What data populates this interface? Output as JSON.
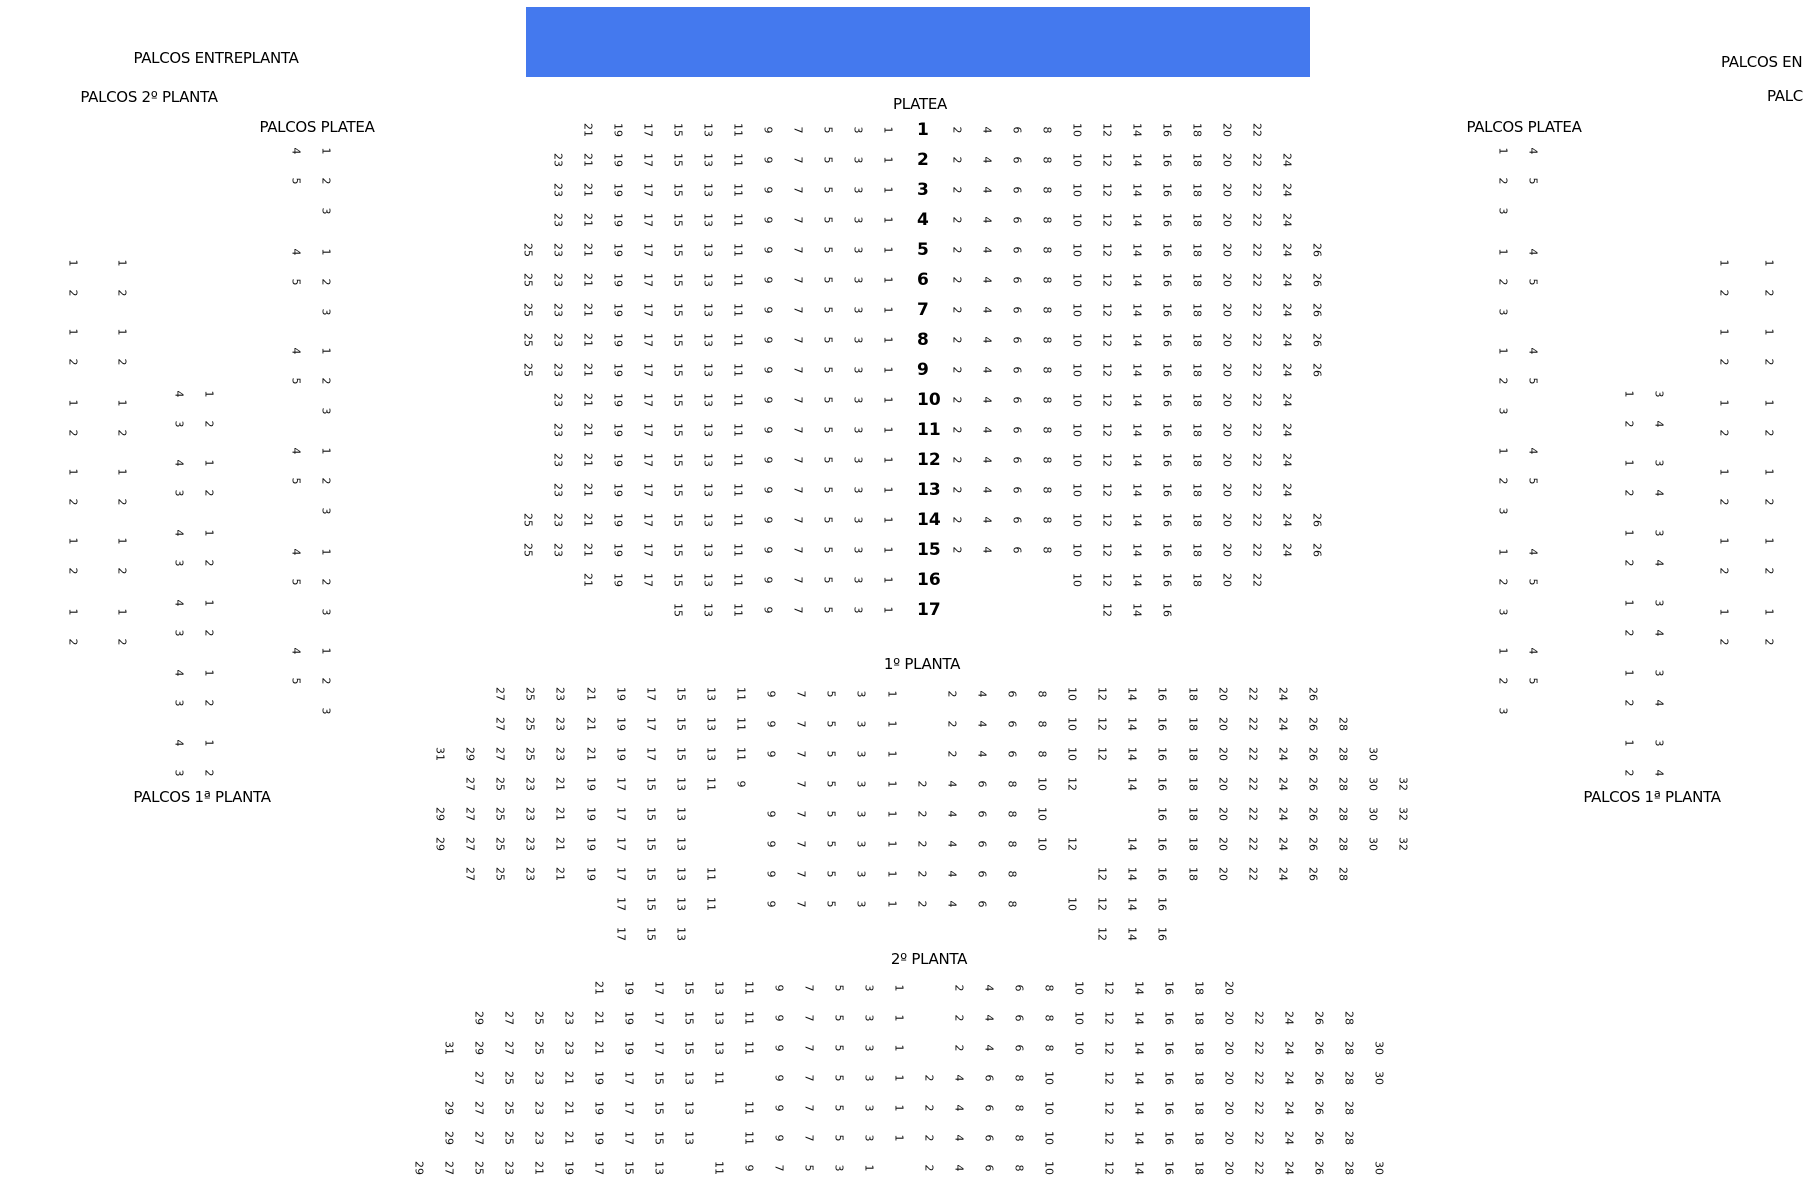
{
  "stage": {
    "color": "#4479ee"
  },
  "sections": {
    "palcos_entreplanta_left": "PALCOS ENTREPLANTA",
    "palcos_2_planta_left": "PALCOS 2º PLANTA",
    "palcos_platea_left": "PALCOS PLATEA",
    "palcos_platea_right": "PALCOS PLATEA",
    "palcos_entreplanta_right": "PALCOS EN",
    "palcos_2_planta_right": "PALC",
    "palcos_1_planta_left": "PALCOS 1ª PLANTA",
    "palcos_1_planta_right": "PALCOS 1ª PLANTA",
    "platea": "PLATEA",
    "planta_1": "1º PLANTA",
    "planta_2": "2º PLANTA"
  },
  "platea_rows": [
    {
      "label": "1",
      "left_max": 21,
      "right": [
        2,
        22
      ]
    },
    {
      "label": "2",
      "left_max": 23,
      "right": [
        2,
        24
      ]
    },
    {
      "label": "3",
      "left_max": 23,
      "right": [
        2,
        24
      ]
    },
    {
      "label": "4",
      "left_max": 23,
      "right": [
        2,
        24
      ]
    },
    {
      "label": "5",
      "left_max": 25,
      "right": [
        2,
        26
      ]
    },
    {
      "label": "6",
      "left_max": 25,
      "right": [
        2,
        26
      ]
    },
    {
      "label": "7",
      "left_max": 25,
      "right": [
        2,
        26
      ]
    },
    {
      "label": "8",
      "left_max": 25,
      "right": [
        2,
        26
      ]
    },
    {
      "label": "9",
      "left_max": 25,
      "right": [
        2,
        26
      ]
    },
    {
      "label": "10",
      "left_max": 23,
      "right": [
        2,
        24
      ]
    },
    {
      "label": "11",
      "left_max": 23,
      "right": [
        2,
        24
      ]
    },
    {
      "label": "12",
      "left_max": 23,
      "right": [
        2,
        24
      ]
    },
    {
      "label": "13",
      "left_max": 23,
      "right": [
        2,
        24
      ]
    },
    {
      "label": "14",
      "left_max": 25,
      "right": [
        2,
        26
      ]
    },
    {
      "label": "15",
      "left_max": 25,
      "right": [
        2,
        26
      ]
    },
    {
      "label": "16",
      "left_max": 21,
      "right": [
        10,
        22
      ]
    },
    {
      "label": "17",
      "left_max": 15,
      "right": [
        12,
        16
      ]
    }
  ],
  "planta_1_rows": [
    [
      null,
      null,
      27,
      25,
      23,
      21,
      19,
      17,
      15,
      13,
      11,
      9,
      7,
      5,
      3,
      1,
      null,
      2,
      4,
      6,
      8,
      10,
      12,
      14,
      16,
      18,
      20,
      22,
      24,
      26
    ],
    [
      null,
      null,
      27,
      25,
      23,
      21,
      19,
      17,
      15,
      13,
      11,
      9,
      7,
      5,
      3,
      1,
      null,
      2,
      4,
      6,
      8,
      10,
      12,
      14,
      16,
      18,
      20,
      22,
      24,
      26,
      28
    ],
    [
      31,
      29,
      27,
      25,
      23,
      21,
      19,
      17,
      15,
      13,
      11,
      9,
      7,
      5,
      3,
      1,
      null,
      2,
      4,
      6,
      8,
      10,
      12,
      14,
      16,
      18,
      20,
      22,
      24,
      26,
      28,
      30
    ],
    [
      null,
      27,
      25,
      23,
      21,
      19,
      17,
      15,
      13,
      11,
      9,
      null,
      7,
      5,
      3,
      1,
      2,
      4,
      6,
      8,
      10,
      12,
      null,
      14,
      16,
      18,
      20,
      22,
      24,
      26,
      28,
      30,
      32
    ],
    [
      29,
      27,
      25,
      23,
      21,
      19,
      17,
      15,
      13,
      null,
      null,
      9,
      7,
      5,
      3,
      1,
      2,
      4,
      6,
      8,
      10,
      null,
      null,
      null,
      16,
      18,
      20,
      22,
      24,
      26,
      28,
      30,
      32
    ],
    [
      29,
      27,
      25,
      23,
      21,
      19,
      17,
      15,
      13,
      null,
      null,
      9,
      7,
      5,
      3,
      1,
      2,
      4,
      6,
      8,
      10,
      12,
      null,
      14,
      16,
      18,
      20,
      22,
      24,
      26,
      28,
      30,
      32
    ],
    [
      null,
      27,
      25,
      23,
      21,
      19,
      17,
      15,
      13,
      11,
      null,
      9,
      7,
      5,
      3,
      1,
      2,
      4,
      6,
      8,
      null,
      null,
      12,
      14,
      16,
      18,
      20,
      22,
      24,
      26,
      28
    ],
    [
      null,
      null,
      null,
      null,
      null,
      null,
      17,
      15,
      13,
      11,
      null,
      9,
      7,
      5,
      3,
      1,
      2,
      4,
      6,
      8,
      null,
      10,
      12,
      14,
      16
    ],
    [
      null,
      null,
      null,
      null,
      null,
      null,
      17,
      15,
      13,
      null,
      null,
      null,
      null,
      null,
      null,
      null,
      null,
      null,
      null,
      null,
      null,
      null,
      12,
      14,
      16
    ]
  ],
  "planta_2_rows": [
    [
      null,
      null,
      null,
      null,
      null,
      null,
      21,
      19,
      17,
      15,
      13,
      11,
      9,
      7,
      5,
      3,
      1,
      null,
      2,
      4,
      6,
      8,
      10,
      12,
      14,
      16,
      18,
      20
    ],
    [
      null,
      null,
      29,
      27,
      25,
      23,
      21,
      19,
      17,
      15,
      13,
      11,
      9,
      7,
      5,
      3,
      1,
      null,
      2,
      4,
      6,
      8,
      10,
      12,
      14,
      16,
      18,
      20,
      22,
      24,
      26,
      28
    ],
    [
      null,
      31,
      29,
      27,
      25,
      23,
      21,
      19,
      17,
      15,
      13,
      11,
      9,
      7,
      5,
      3,
      1,
      null,
      2,
      4,
      6,
      8,
      10,
      12,
      14,
      16,
      18,
      20,
      22,
      24,
      26,
      28,
      30
    ],
    [
      null,
      null,
      27,
      25,
      23,
      21,
      19,
      17,
      15,
      13,
      11,
      null,
      9,
      7,
      5,
      3,
      1,
      2,
      4,
      6,
      8,
      10,
      null,
      12,
      14,
      16,
      18,
      20,
      22,
      24,
      26,
      28,
      30
    ],
    [
      null,
      29,
      27,
      25,
      23,
      21,
      19,
      17,
      15,
      13,
      null,
      11,
      9,
      7,
      5,
      3,
      1,
      2,
      4,
      6,
      8,
      10,
      null,
      12,
      14,
      16,
      18,
      20,
      22,
      24,
      26,
      28
    ],
    [
      null,
      29,
      27,
      25,
      23,
      21,
      19,
      17,
      15,
      13,
      null,
      11,
      9,
      7,
      5,
      3,
      1,
      2,
      4,
      6,
      8,
      10,
      null,
      12,
      14,
      16,
      18,
      20,
      22,
      24,
      26,
      28
    ],
    [
      29,
      27,
      25,
      23,
      21,
      19,
      17,
      15,
      13,
      null,
      11,
      9,
      7,
      5,
      3,
      1,
      null,
      2,
      4,
      6,
      8,
      10,
      null,
      12,
      14,
      16,
      18,
      20,
      22,
      24,
      26,
      28,
      30
    ]
  ],
  "palcos": {
    "platea_left": {
      "count": 6,
      "columns": [
        [
          "4",
          "5"
        ],
        [
          "1",
          "2",
          "3"
        ]
      ]
    },
    "platea_right": {
      "count": 6,
      "columns": [
        [
          "1",
          "2",
          "3"
        ],
        [
          "4",
          "5"
        ]
      ]
    },
    "planta_2_left": {
      "count": 6,
      "columns": [
        [
          "1",
          "2"
        ],
        [
          "1",
          "2"
        ]
      ]
    },
    "planta_2_right": {
      "count": 6,
      "columns": [
        [
          "1",
          "2"
        ],
        [
          "1",
          "2"
        ]
      ]
    },
    "planta_1_left": {
      "count": 6,
      "columns": [
        [
          "4",
          "3"
        ],
        [
          "1",
          "2"
        ]
      ]
    },
    "planta_1_right": {
      "count": 6,
      "columns": [
        [
          "1",
          "2"
        ],
        [
          "3",
          "4"
        ]
      ]
    }
  }
}
